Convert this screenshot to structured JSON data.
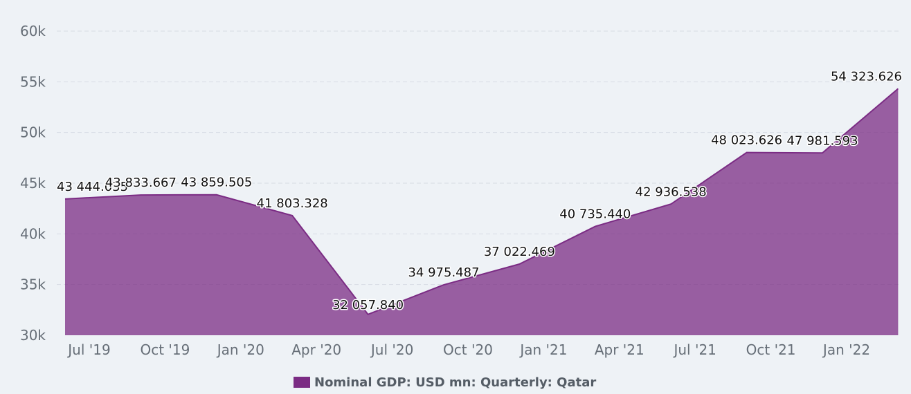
{
  "chart_data": {
    "type": "area",
    "series": [
      {
        "name": "Nominal GDP: USD mn: Quarterly: Qatar",
        "color": "#7b2c84",
        "x": [
          "Jun '19",
          "Sep '19",
          "Dec '19",
          "Mar '20",
          "Jun '20",
          "Sep '20",
          "Dec '20",
          "Mar '21",
          "Jun '21",
          "Sep '21",
          "Dec '21",
          "Mar '22"
        ],
        "values": [
          43444.035,
          43833.667,
          43859.505,
          41803.328,
          32057.84,
          34975.487,
          37022.469,
          40735.44,
          42936.538,
          48023.626,
          47981.593,
          54323.626
        ],
        "labels": [
          "43 444.035",
          "43 833.667",
          "43 859.505",
          "41 803.328",
          "32 057.840",
          "34 975.487",
          "37 022.469",
          "40 735.440",
          "42 936.538",
          "48 023.626",
          "47 981.593",
          "54 323.626"
        ]
      }
    ],
    "x_ticks": [
      "Jul '19",
      "Oct '19",
      "Jan '20",
      "Apr '20",
      "Jul '20",
      "Oct '20",
      "Jan '21",
      "Apr '21",
      "Jul '21",
      "Oct '21",
      "Jan '22"
    ],
    "y_ticks": [
      "30k",
      "35k",
      "40k",
      "45k",
      "50k",
      "55k",
      "60k"
    ],
    "ylim": [
      30000,
      60000
    ],
    "grid": true,
    "legend_position": "bottom-center"
  }
}
